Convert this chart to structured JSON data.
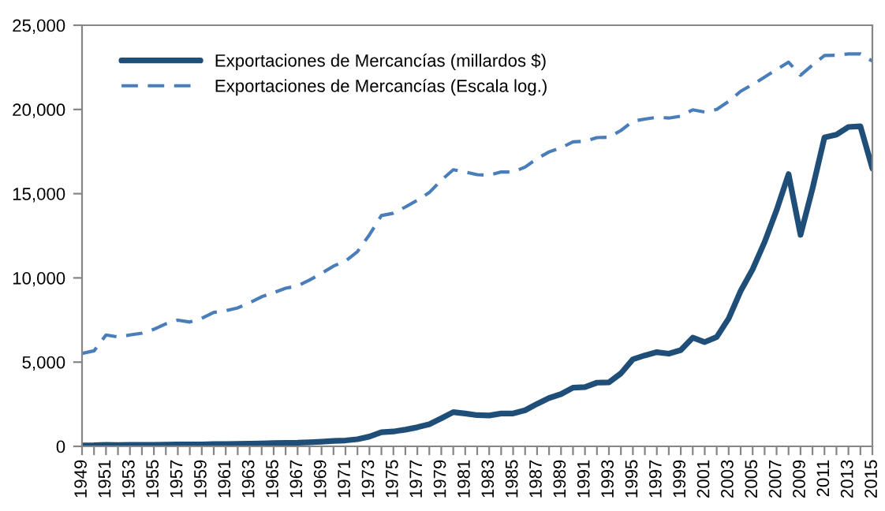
{
  "chart_data": {
    "type": "line",
    "categories": [
      "1949",
      null,
      "1951",
      null,
      "1953",
      null,
      "1955",
      null,
      "1957",
      null,
      "1959",
      null,
      "1961",
      null,
      "1963",
      null,
      "1965",
      null,
      "1967",
      null,
      "1969",
      null,
      "1971",
      null,
      "1973",
      null,
      "1975",
      null,
      "1977",
      null,
      "1979",
      null,
      "1981",
      null,
      "1983",
      null,
      "1985",
      null,
      "1987",
      null,
      "1989",
      null,
      "1991",
      null,
      "1993",
      null,
      "1995",
      null,
      "1997",
      null,
      "1999",
      null,
      "2001",
      null,
      "2003",
      null,
      "2005",
      null,
      "2007",
      null,
      "2009",
      null,
      "2011",
      null,
      "2013",
      null,
      "2015"
    ],
    "series": [
      {
        "name": "Exportaciones de Mercancías (millardos $)",
        "color": "#1f4e79",
        "line_style": "solid",
        "values": [
          59,
          62,
          84,
          81,
          84,
          87,
          94,
          104,
          112,
          108,
          116,
          130,
          134,
          142,
          157,
          176,
          190,
          207,
          216,
          242,
          276,
          317,
          350,
          420,
          580,
          840,
          880,
          990,
          1130,
          1310,
          1660,
          2030,
          1950,
          1850,
          1830,
          1950,
          1950,
          2140,
          2520,
          2870,
          3100,
          3480,
          3520,
          3780,
          3800,
          4330,
          5170,
          5400,
          5590,
          5500,
          5710,
          6450,
          6190,
          6490,
          7590,
          9220,
          10510,
          12130,
          14020,
          16160,
          12560,
          15300,
          18340,
          18500,
          18960,
          19000,
          16500
        ]
      },
      {
        "name": "Exportaciones de Mercancías (Escala log.)",
        "color": "#4a7ebb",
        "line_style": "dashed",
        "values": [
          5520,
          5670,
          6610,
          6490,
          6610,
          6720,
          6950,
          7270,
          7490,
          7380,
          7600,
          7950,
          8050,
          8220,
          8530,
          8880,
          9120,
          9390,
          9520,
          9870,
          10270,
          10700,
          11000,
          11560,
          12560,
          13700,
          13840,
          14210,
          14610,
          15070,
          15800,
          16420,
          16290,
          16130,
          16100,
          16290,
          16290,
          16580,
          17080,
          17480,
          17720,
          18080,
          18110,
          18330,
          18350,
          18750,
          19300,
          19430,
          19540,
          19490,
          19600,
          19980,
          19850,
          20000,
          20480,
          21080,
          21480,
          21920,
          22370,
          22810,
          22030,
          22640,
          23200,
          23220,
          23300,
          23300,
          22870
        ]
      }
    ],
    "ylim": [
      0,
      25000
    ],
    "yticks": [
      {
        "value": 0,
        "label": "0"
      },
      {
        "value": 5000,
        "label": "5,000"
      },
      {
        "value": 10000,
        "label": "10,000"
      },
      {
        "value": 15000,
        "label": "15,000"
      },
      {
        "value": 20000,
        "label": "20,000"
      },
      {
        "value": 25000,
        "label": "25,000"
      }
    ],
    "grid": false,
    "legend": "top left"
  }
}
